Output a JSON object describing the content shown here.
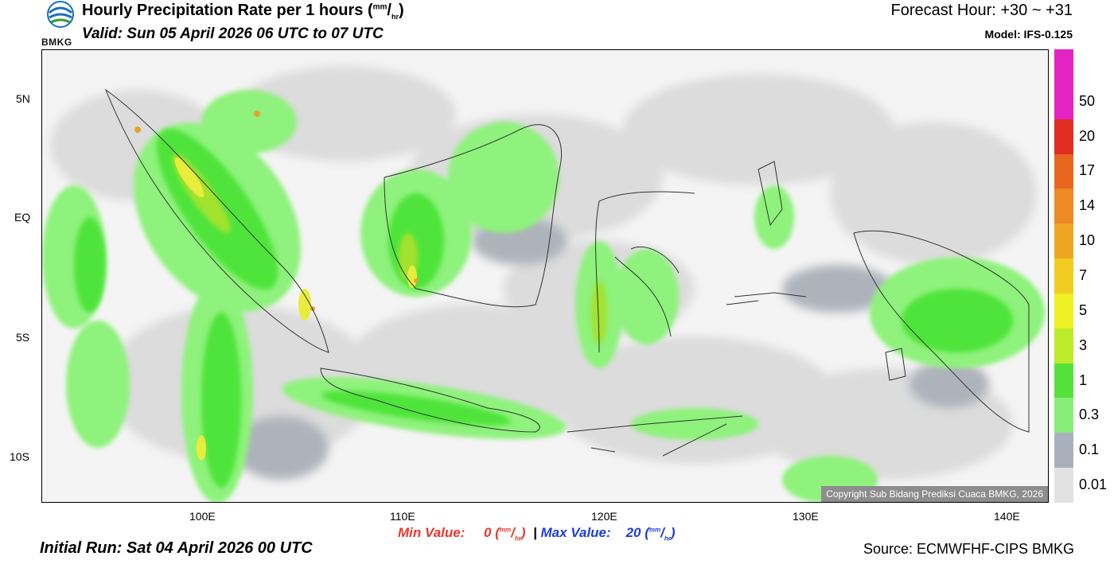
{
  "header": {
    "logo_text": "BMKG",
    "title": "Hourly Precipitation Rate per 1 hours (",
    "title_unit_num": "mm",
    "title_unit_den": "hr",
    "title_close": ")",
    "valid": "Valid: Sun 05 April 2026 06 UTC to 07 UTC",
    "forecast_hour": "Forecast Hour: +30 ~ +31",
    "model": "Model: IFS-0.125"
  },
  "map": {
    "lat_labels": [
      "5N",
      "EQ",
      "5S",
      "10S"
    ],
    "lon_labels": [
      "100E",
      "110E",
      "120E",
      "130E",
      "140E"
    ],
    "copyright": "Copyright Sub Bidang Prediksi Cuaca BMKG, 2026",
    "colors": {
      "background": "#f4f4f4",
      "light": "#dcdcdc",
      "gray": "#aeb3bb",
      "green_light": "#8ef27c",
      "green": "#4fe43a",
      "lime": "#a3e22e",
      "yellow": "#e8ec3a",
      "orange": "#e8a22a",
      "red": "#d9401f",
      "coast": "#333333"
    }
  },
  "legend": {
    "labels": [
      "50",
      "20",
      "17",
      "14",
      "10",
      "7",
      "5",
      "3",
      "1",
      "0.3",
      "0.1",
      "0.01"
    ],
    "colors": [
      "#e522c3",
      "#e22d22",
      "#e9661e",
      "#ee8a23",
      "#f0a522",
      "#f2cc20",
      "#eef022",
      "#bcec2a",
      "#54e23a",
      "#86ee79",
      "#aab0bb",
      "#e2e2e2"
    ]
  },
  "footer": {
    "min_label": "Min Value:",
    "min_value": "0",
    "max_label": "Max Value:",
    "max_value": "20",
    "unit_num": "mm",
    "unit_den": "hr",
    "separator": "|",
    "initial_run": "Initial Run: Sat 04 April 2026 00 UTC",
    "source": "Source: ECMWFHF-CIPS BMKG"
  }
}
